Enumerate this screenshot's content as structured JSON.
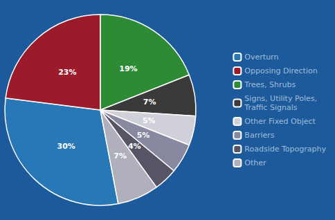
{
  "chart_data": {
    "type": "pie",
    "categories": [
      "Overturn",
      "Opposing Direction",
      "Trees, Shrubs",
      "Signs, Utility Poles,\nTraffic Signals",
      "Other Fixed Object",
      "Barriers",
      "Roadside Topography",
      "Other"
    ],
    "values": [
      30,
      23,
      19,
      7,
      5,
      5,
      4,
      7
    ],
    "value_labels": [
      "30%",
      "23%",
      "19%",
      "7%",
      "5%",
      "5%",
      "4%",
      "7%"
    ],
    "colors": [
      "#2878b8",
      "#9b1b2a",
      "#2e8b35",
      "#3a3a3a",
      "#d0d0d8",
      "#8888a0",
      "#555565",
      "#b0b0bc"
    ],
    "data_labels": true,
    "legend": "right"
  }
}
